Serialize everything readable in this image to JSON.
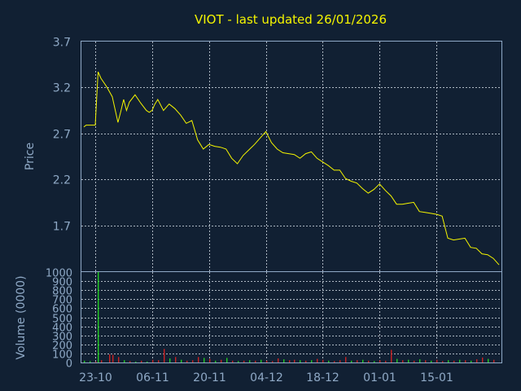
{
  "chart_data": {
    "title": "VIOT - last updated 26/01/2026",
    "colors": {
      "background": "#112033",
      "price_line": "#f5f500",
      "text": "#8fa9c6",
      "grid": "#c8d2dc",
      "volume_up": "#22cc22",
      "volume_down": "#cc2222"
    },
    "x_tick_labels": [
      "23-10",
      "06-11",
      "20-11",
      "04-12",
      "18-12",
      "01-01",
      "15-01"
    ],
    "x_tick_index": [
      2,
      12,
      22,
      32,
      42,
      52,
      62
    ],
    "price_panel": {
      "type": "line",
      "ylabel": "Price",
      "ylim": [
        1.2,
        3.7
      ],
      "y_ticks": [
        1.7,
        2.2,
        2.7,
        3.2,
        3.7
      ],
      "y_tick_labels": [
        "1.7",
        "2.2",
        "2.7",
        "3.2",
        "3.7"
      ],
      "grid": true,
      "x_index_range": [
        0,
        73
      ],
      "x_index": [
        0,
        0.4,
        1,
        2,
        2.5,
        3,
        4,
        5,
        6,
        6.5,
        7,
        7.5,
        8,
        9,
        10,
        11,
        11.5,
        12,
        12.5,
        13,
        14,
        15,
        16,
        17,
        18,
        19,
        20,
        20.5,
        21,
        22,
        23,
        24,
        24.5,
        25,
        26,
        27,
        28,
        29,
        30,
        31,
        32,
        33,
        34,
        35,
        36,
        37,
        38,
        39,
        40,
        41,
        42,
        43,
        44,
        45,
        46,
        47,
        48,
        49,
        50,
        51,
        52,
        53,
        54,
        55,
        56,
        57,
        58,
        59,
        60,
        61,
        62,
        63,
        64,
        65,
        66,
        67,
        68,
        69,
        70,
        71,
        72,
        73
      ],
      "values": [
        2.77,
        2.79,
        2.79,
        2.79,
        3.37,
        3.3,
        3.21,
        3.1,
        2.82,
        2.94,
        3.07,
        2.95,
        3.04,
        3.12,
        3.03,
        2.95,
        2.93,
        2.95,
        3.02,
        3.07,
        2.95,
        3.02,
        2.97,
        2.9,
        2.81,
        2.84,
        2.63,
        2.58,
        2.53,
        2.58,
        2.56,
        2.55,
        2.54,
        2.53,
        2.43,
        2.37,
        2.46,
        2.52,
        2.58,
        2.65,
        2.72,
        2.6,
        2.53,
        2.49,
        2.48,
        2.47,
        2.43,
        2.48,
        2.5,
        2.43,
        2.39,
        2.35,
        2.3,
        2.3,
        2.21,
        2.18,
        2.16,
        2.1,
        2.05,
        2.09,
        2.15,
        2.08,
        2.02,
        1.93,
        1.93,
        1.94,
        1.95,
        1.85,
        1.84,
        1.83,
        1.82,
        1.8,
        1.56,
        1.54,
        1.55,
        1.56,
        1.46,
        1.45,
        1.39,
        1.38,
        1.34,
        1.27
      ]
    },
    "volume_panel": {
      "type": "bar",
      "ylabel": "Volume (0000)",
      "ylim": [
        0,
        1000
      ],
      "y_ticks": [
        0,
        100,
        200,
        300,
        400,
        500,
        600,
        700,
        800,
        900,
        1000
      ],
      "y_tick_labels": [
        "0",
        "100",
        "200",
        "300",
        "400",
        "500",
        "600",
        "700",
        "800",
        "900",
        "1000"
      ],
      "grid": true,
      "x_index": [
        0,
        1,
        2,
        2.4,
        3,
        4.5,
        5,
        6,
        7,
        8,
        9,
        10,
        11,
        12,
        13,
        14,
        15,
        16,
        17,
        18,
        19,
        20,
        21,
        22,
        23,
        24,
        25,
        26,
        27,
        28,
        29,
        30,
        31,
        32,
        33,
        34,
        35,
        36,
        37,
        38,
        39,
        40,
        41,
        42,
        43,
        44,
        45,
        46,
        47,
        48,
        49,
        50,
        51,
        52,
        53,
        54,
        55,
        56,
        57,
        58,
        59,
        60,
        61,
        62,
        63,
        64,
        65,
        66,
        67,
        68,
        69,
        70,
        71,
        72
      ],
      "values": [
        20,
        15,
        10,
        1000,
        25,
        90,
        85,
        60,
        25,
        15,
        10,
        20,
        10,
        30,
        25,
        150,
        45,
        60,
        30,
        20,
        25,
        60,
        50,
        40,
        20,
        30,
        50,
        20,
        15,
        20,
        25,
        20,
        30,
        20,
        15,
        45,
        35,
        25,
        30,
        25,
        20,
        25,
        40,
        30,
        20,
        15,
        25,
        60,
        20,
        25,
        30,
        20,
        15,
        25,
        20,
        140,
        40,
        25,
        30,
        20,
        35,
        25,
        20,
        30,
        15,
        25,
        20,
        30,
        25,
        20,
        35,
        55,
        40,
        30
      ],
      "colors": [
        "up",
        "up",
        "down",
        "up",
        "down",
        "down",
        "down",
        "down",
        "up",
        "down",
        "up",
        "down",
        "up",
        "down",
        "down",
        "down",
        "up",
        "down",
        "up",
        "down",
        "down",
        "down",
        "up",
        "down",
        "up",
        "down",
        "up",
        "down",
        "up",
        "down",
        "up",
        "down",
        "up",
        "down",
        "down",
        "down",
        "up",
        "down",
        "down",
        "up",
        "down",
        "up",
        "down",
        "down",
        "up",
        "down",
        "down",
        "down",
        "up",
        "down",
        "up",
        "down",
        "up",
        "down",
        "down",
        "down",
        "up",
        "down",
        "up",
        "down",
        "up",
        "down",
        "up",
        "down",
        "down",
        "up",
        "down",
        "up",
        "down",
        "up",
        "down",
        "down",
        "up",
        "down"
      ]
    }
  }
}
